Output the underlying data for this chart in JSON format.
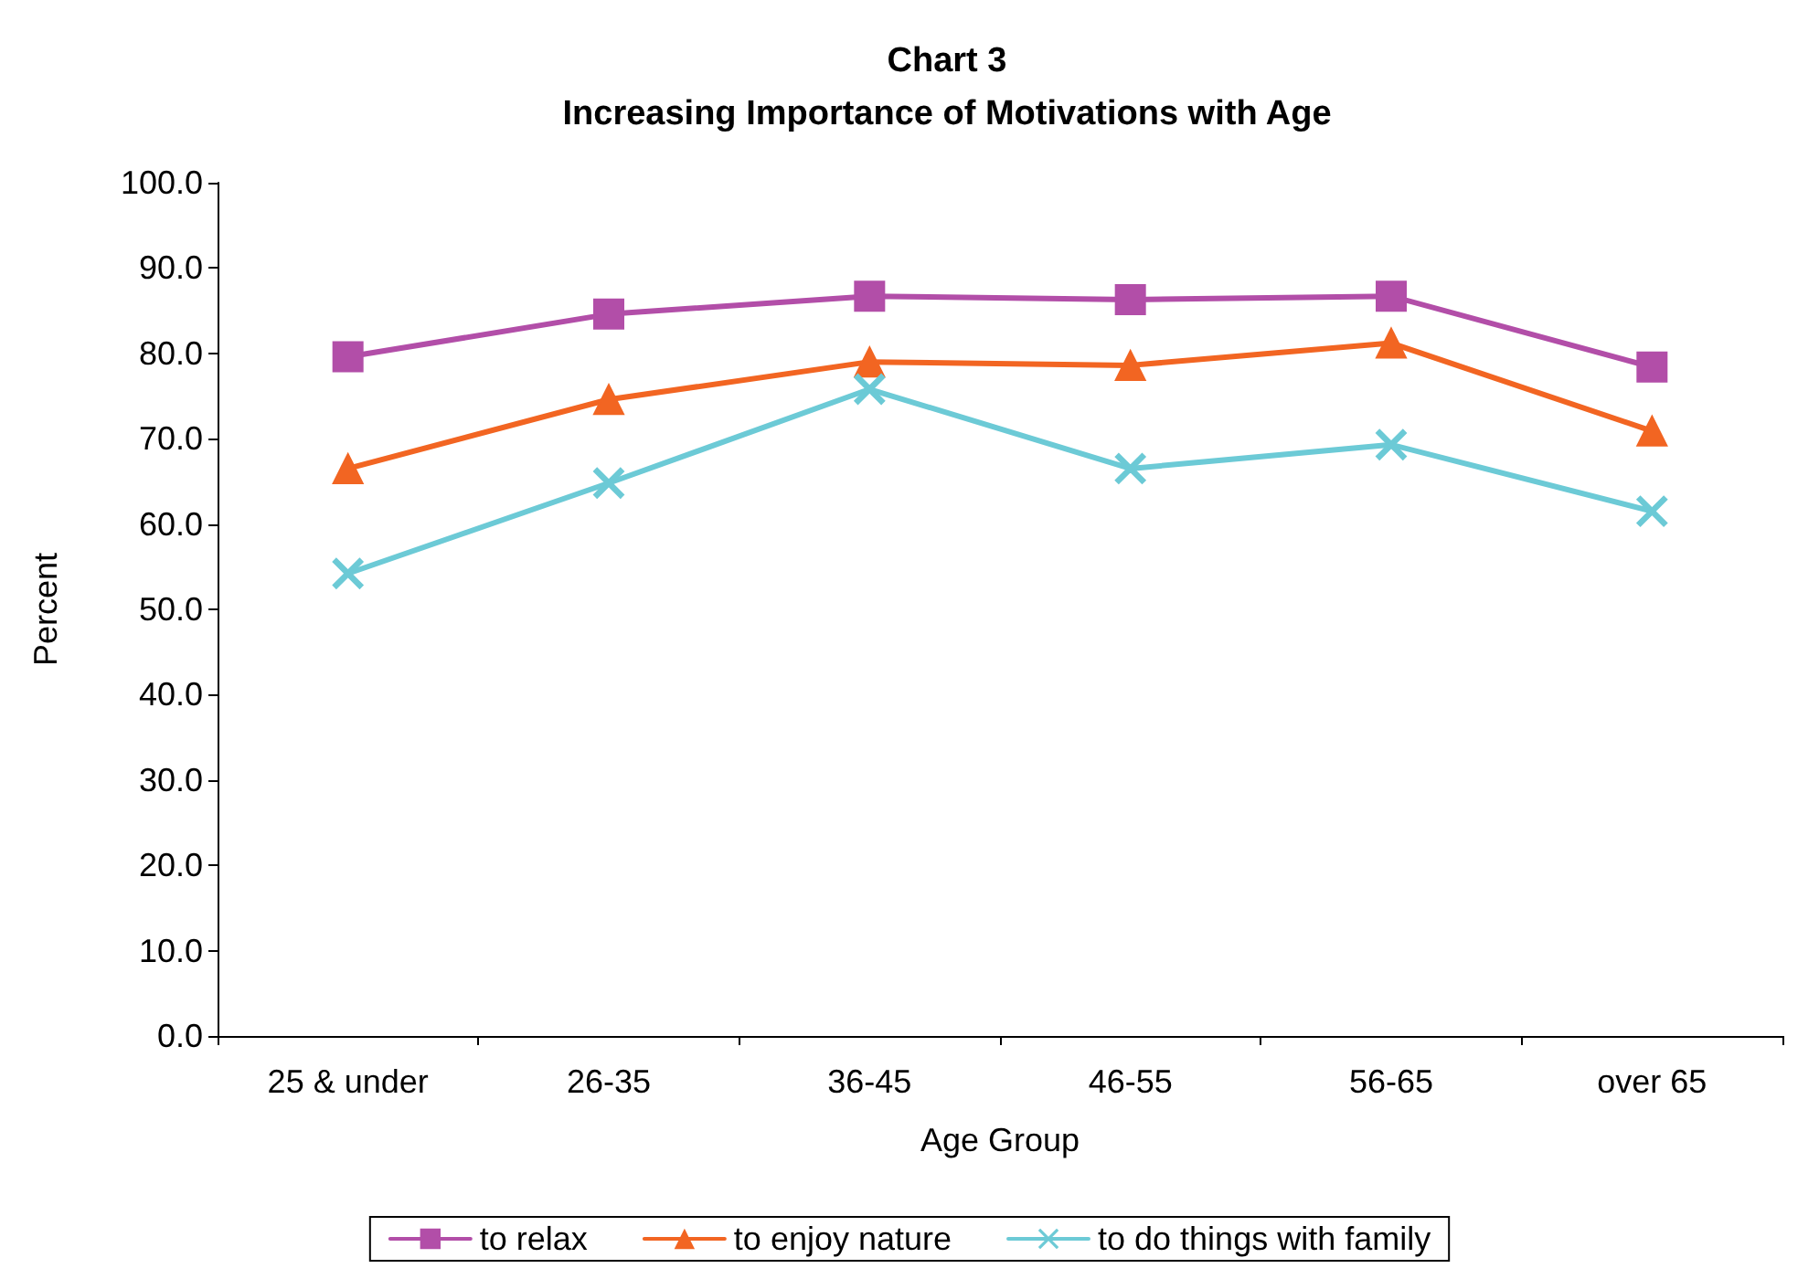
{
  "chart_data": {
    "type": "line",
    "title": "Chart 3\nIncreasing Importance of Motivations with Age",
    "xlabel": "Age Group",
    "ylabel": "Percent",
    "categories": [
      "25 & under",
      "26-35",
      "36-45",
      "46-55",
      "56-65",
      "over 65"
    ],
    "series": [
      {
        "name": "to relax",
        "color": "#b24ea8",
        "marker": "square",
        "values": [
          79.6,
          84.6,
          86.7,
          86.3,
          86.7,
          78.4
        ]
      },
      {
        "name": "to enjoy nature",
        "color": "#f26522",
        "marker": "triangle",
        "values": [
          66.5,
          74.6,
          79.0,
          78.6,
          81.2,
          70.9
        ]
      },
      {
        "name": "to do things with family",
        "color": "#6ccad6",
        "marker": "cross",
        "values": [
          54.2,
          64.8,
          75.8,
          66.5,
          69.3,
          61.5
        ]
      }
    ],
    "ylim": [
      0,
      100
    ],
    "yticks": [
      {
        "value": 0,
        "label": "0.0"
      },
      {
        "value": 10,
        "label": "10.0"
      },
      {
        "value": 20,
        "label": "20.0"
      },
      {
        "value": 30,
        "label": "30.0"
      },
      {
        "value": 40,
        "label": "40.0"
      },
      {
        "value": 50,
        "label": "50.0"
      },
      {
        "value": 60,
        "label": "60.0"
      },
      {
        "value": 70,
        "label": "70.0"
      },
      {
        "value": 80,
        "label": "80.0"
      },
      {
        "value": 90,
        "label": "90.0"
      },
      {
        "value": 100,
        "label": "100.0"
      }
    ],
    "grid": false,
    "legend": "bottom",
    "line_style": "solid"
  }
}
